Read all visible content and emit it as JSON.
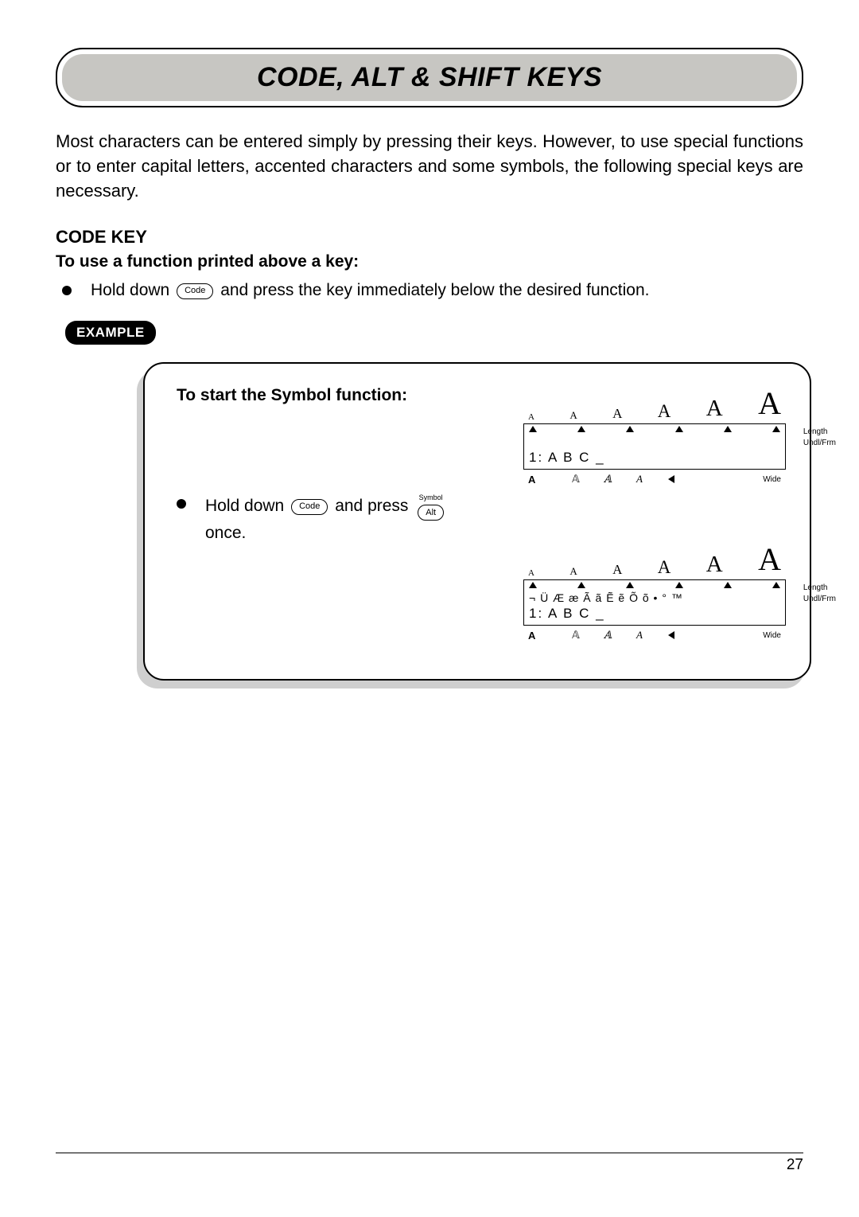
{
  "title": "CODE, ALT & SHIFT KEYS",
  "intro": "Most characters can be entered simply by pressing their keys. However, to use special functions or to enter capital letters, accented characters and some symbols, the following special keys are necessary.",
  "section": {
    "heading": "CODE KEY",
    "sub": "To use a function printed above a key:",
    "bullet_pre": "Hold down ",
    "code_key": "Code",
    "bullet_post": " and press the key immediately below the desired function."
  },
  "example_label": "EXAMPLE",
  "example": {
    "title": "To start the Symbol function:",
    "step_pre": "Hold down ",
    "code_key": "Code",
    "step_mid": " and press ",
    "alt_key": "Alt",
    "alt_label": "Symbol",
    "step_post": " once."
  },
  "lcd": {
    "top_letters": [
      "A",
      "A",
      "A",
      "A",
      "A",
      "A"
    ],
    "top_sizes": [
      11,
      13,
      17,
      23,
      29,
      40
    ],
    "line_text": "1: A B C _",
    "symbol_row": "¬ Ü Æ æ Ã ã Ẽ ẽ Õ õ • ° ™",
    "side1": "Length",
    "side2": "Undl/Frm",
    "bottom_styles": [
      "A",
      "𝔸",
      "𝔸",
      "A",
      "A"
    ],
    "wide": "Wide"
  },
  "page_number": "27",
  "colors": {
    "banner_bg": "#c7c6c2",
    "shadow": "#cfcfcf",
    "text": "#000000",
    "bg": "#ffffff"
  }
}
